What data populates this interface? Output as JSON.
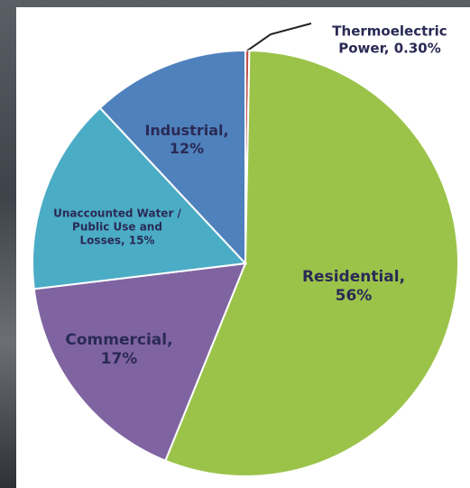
{
  "chart_data": {
    "type": "pie",
    "categories": [
      "Thermoelectric Power,",
      "Residential,",
      "Commercial,",
      "Unaccounted Water / Public Use and Losses,",
      "Industrial,"
    ],
    "values": [
      0.3,
      56,
      17,
      15,
      12
    ],
    "value_labels": [
      "0.30%",
      "56%",
      "17%",
      "15%",
      "12%"
    ],
    "colors": [
      "#c0504d",
      "#9bc34a",
      "#8064a2",
      "#4bacc6",
      "#4f81bd"
    ]
  }
}
